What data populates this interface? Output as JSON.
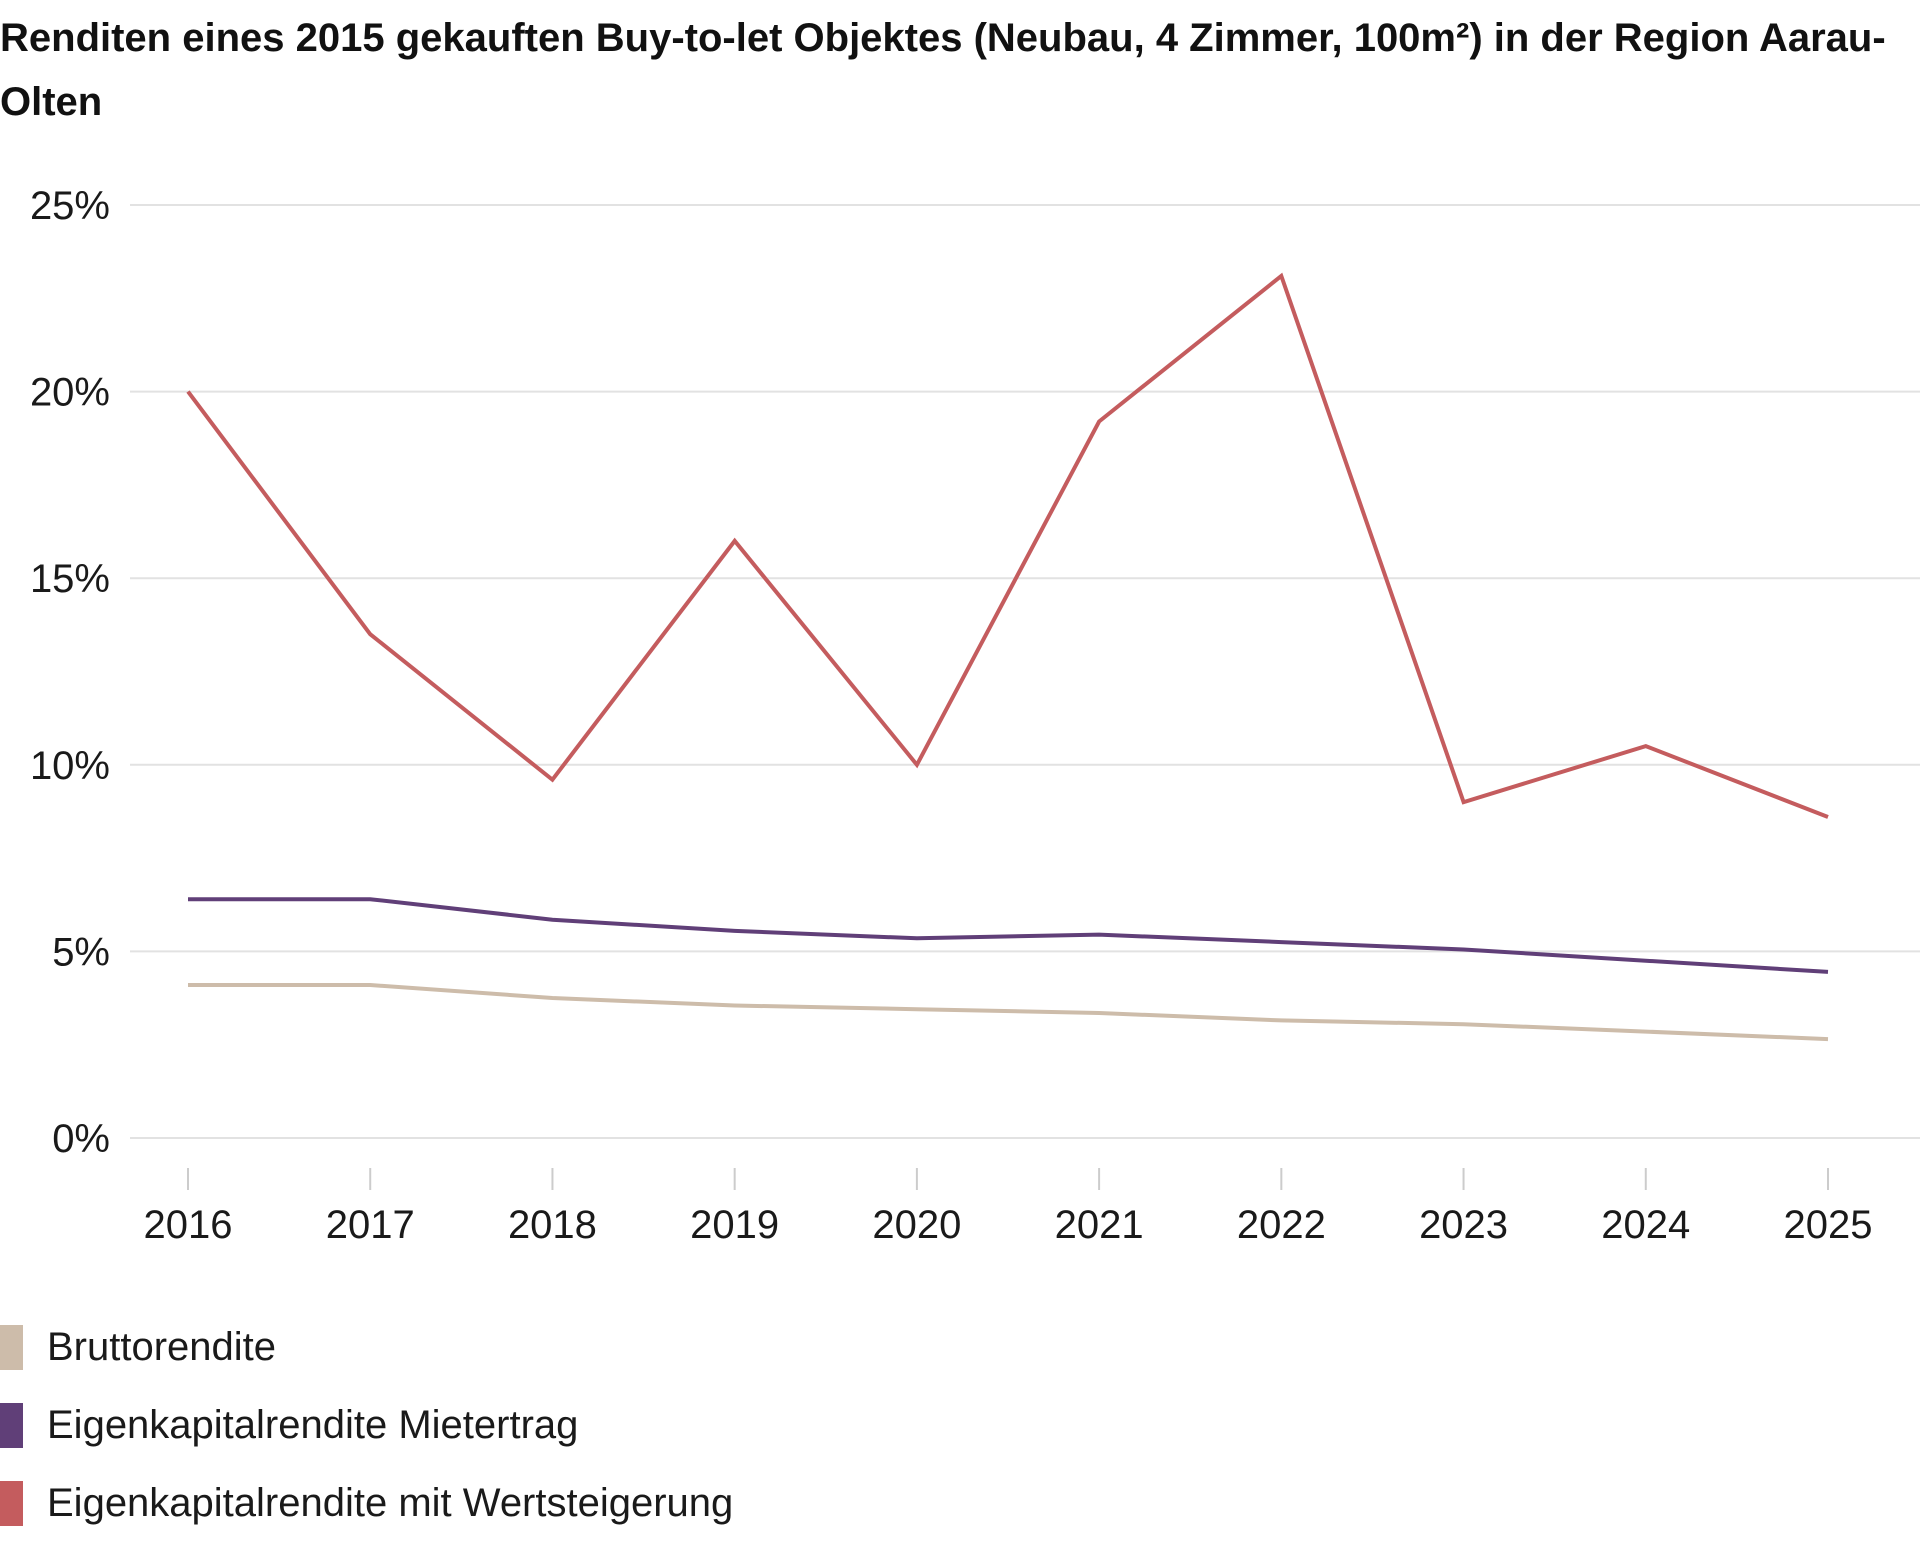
{
  "chart_data": {
    "type": "line",
    "title": "Renditen eines 2015 gekauften Buy-to-let Objektes (Neubau, 4 Zimmer, 100m²) in der Region Aarau-Olten",
    "xlabel": "",
    "ylabel": "",
    "x": [
      "2016",
      "2017",
      "2018",
      "2019",
      "2020",
      "2021",
      "2022",
      "2023",
      "2024",
      "2025"
    ],
    "ylim": [
      0,
      25
    ],
    "yticks": [
      0,
      5,
      10,
      15,
      20,
      25
    ],
    "ytick_labels": [
      "0%",
      "5%",
      "10%",
      "15%",
      "20%",
      "25%"
    ],
    "grid": true,
    "legend_position": "bottom-left",
    "series": [
      {
        "name": "Bruttorendite",
        "color": "#cdbcaa",
        "values": [
          4.1,
          4.1,
          3.75,
          3.55,
          3.45,
          3.35,
          3.15,
          3.05,
          2.85,
          2.65
        ]
      },
      {
        "name": "Eigenkapitalrendite Mietertrag",
        "color": "#603f78",
        "values": [
          6.4,
          6.4,
          5.85,
          5.55,
          5.35,
          5.45,
          5.25,
          5.05,
          4.75,
          4.45
        ]
      },
      {
        "name": "Eigenkapitalrendite mit Wertsteigerung",
        "color": "#c45c5e",
        "values": [
          20.0,
          13.5,
          9.6,
          16.0,
          10.0,
          19.2,
          23.1,
          9.0,
          10.5,
          8.6
        ]
      }
    ]
  }
}
